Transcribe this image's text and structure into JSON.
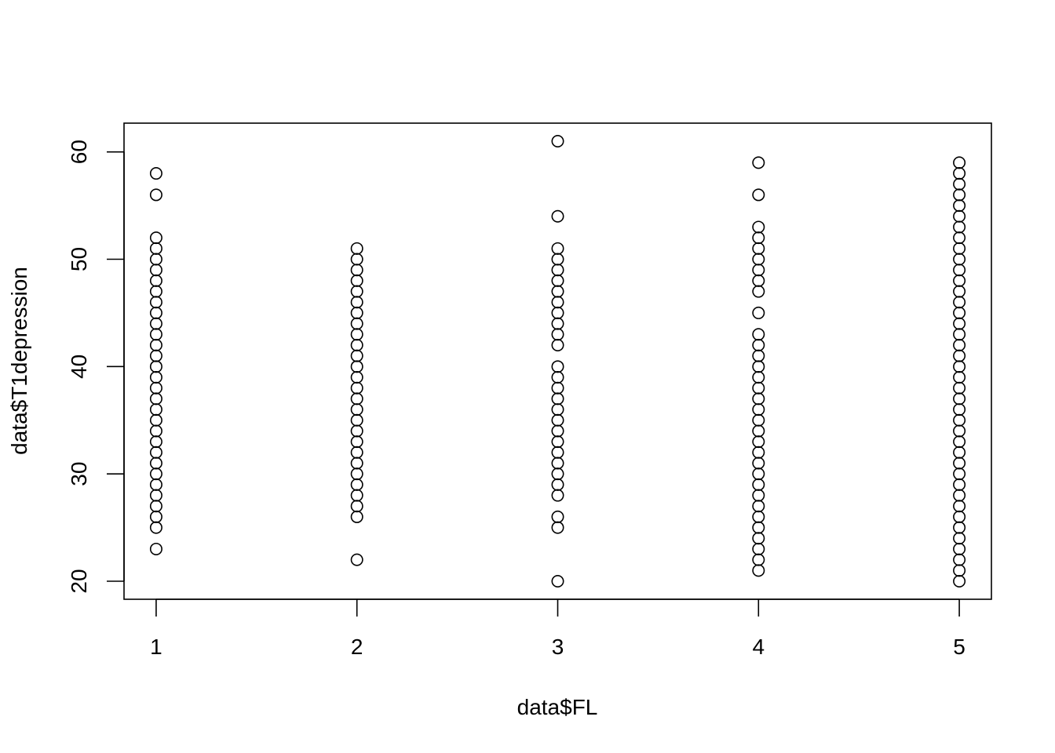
{
  "chart_data": {
    "type": "scatter",
    "title": "",
    "xlabel": "data$FL",
    "ylabel": "data$T1depression",
    "xlim": [
      0.84,
      5.16
    ],
    "ylim": [
      18.32,
      62.68
    ],
    "x_ticks": [
      1,
      2,
      3,
      4,
      5
    ],
    "y_ticks": [
      20,
      30,
      40,
      50,
      60
    ],
    "grid": false,
    "legend": "none",
    "marker": "open-circle",
    "series": [
      {
        "points_by_x": [
          {
            "x": 1,
            "y": [
              23,
              25,
              26,
              27,
              28,
              29,
              30,
              31,
              32,
              33,
              34,
              35,
              36,
              37,
              38,
              39,
              40,
              41,
              42,
              43,
              44,
              45,
              46,
              47,
              48,
              49,
              50,
              51,
              52,
              56,
              58
            ]
          },
          {
            "x": 2,
            "y": [
              22,
              26,
              27,
              28,
              29,
              30,
              31,
              32,
              33,
              34,
              35,
              36,
              37,
              38,
              39,
              40,
              41,
              42,
              43,
              44,
              45,
              46,
              47,
              48,
              49,
              50,
              51
            ]
          },
          {
            "x": 3,
            "y": [
              20,
              25,
              26,
              28,
              29,
              30,
              31,
              32,
              33,
              34,
              35,
              36,
              37,
              38,
              39,
              40,
              42,
              43,
              44,
              45,
              46,
              47,
              48,
              49,
              50,
              51,
              54,
              61
            ]
          },
          {
            "x": 4,
            "y": [
              21,
              22,
              23,
              24,
              25,
              26,
              27,
              28,
              29,
              30,
              31,
              32,
              33,
              34,
              35,
              36,
              37,
              38,
              39,
              40,
              41,
              42,
              43,
              45,
              47,
              48,
              49,
              50,
              51,
              52,
              53,
              56,
              59
            ]
          },
          {
            "x": 5,
            "y": [
              20,
              21,
              22,
              23,
              24,
              25,
              26,
              27,
              28,
              29,
              30,
              31,
              32,
              33,
              34,
              35,
              36,
              37,
              38,
              39,
              40,
              41,
              42,
              43,
              44,
              45,
              46,
              47,
              48,
              49,
              50,
              51,
              52,
              53,
              54,
              55,
              56,
              57,
              58,
              59
            ]
          }
        ]
      }
    ]
  }
}
